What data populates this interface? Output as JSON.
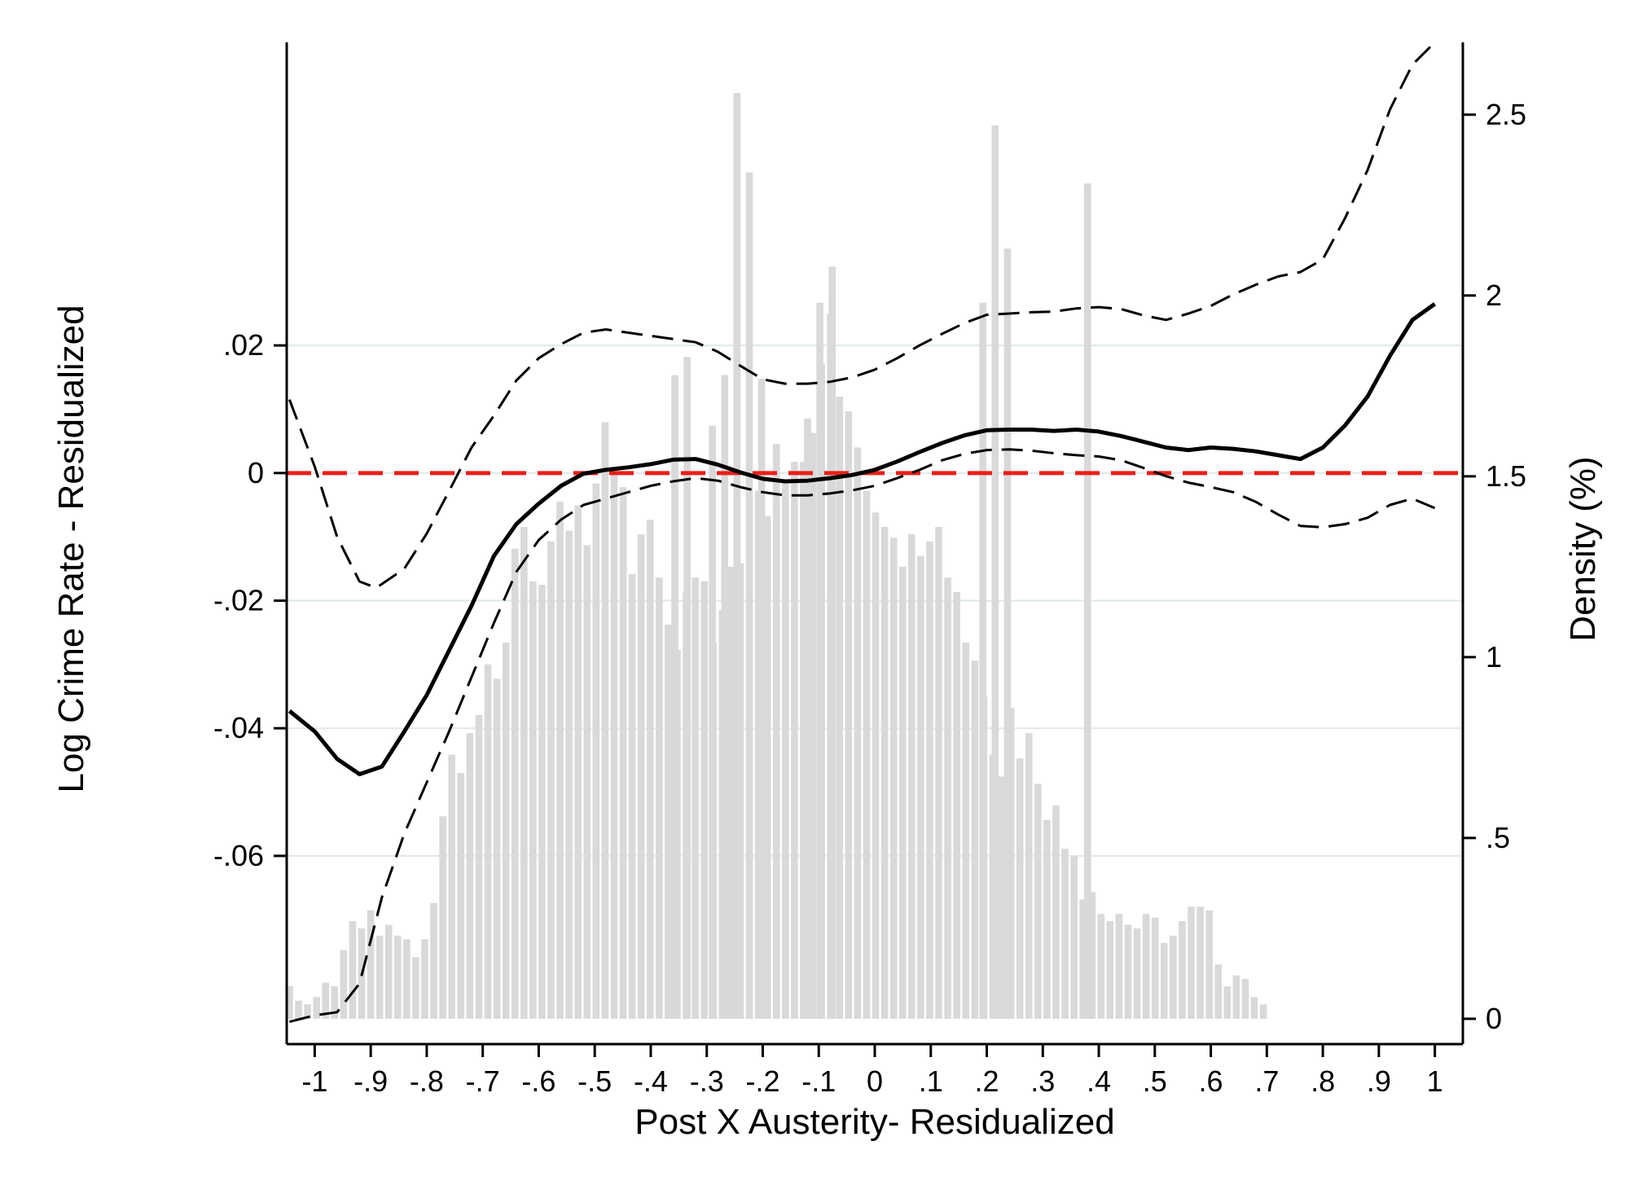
{
  "chart_data": {
    "type": "line",
    "title": "",
    "xlabel": "Post X Austerity- Residualized",
    "ylabel": "Log Crime Rate - Residualized",
    "y2label": "Density (%)",
    "xlim": [
      -1.05,
      1.05
    ],
    "ylim": [
      -0.0895,
      0.0675
    ],
    "y2lim": [
      -0.07,
      2.7
    ],
    "grid": true,
    "x_ticks": [
      {
        "value": -1,
        "label": "-1"
      },
      {
        "value": -0.9,
        "label": "-.9"
      },
      {
        "value": -0.8,
        "label": "-.8"
      },
      {
        "value": -0.7,
        "label": "-.7"
      },
      {
        "value": -0.6,
        "label": "-.6"
      },
      {
        "value": -0.5,
        "label": "-.5"
      },
      {
        "value": -0.4,
        "label": "-.4"
      },
      {
        "value": -0.3,
        "label": "-.3"
      },
      {
        "value": -0.2,
        "label": "-.2"
      },
      {
        "value": -0.1,
        "label": "-.1"
      },
      {
        "value": 0,
        "label": "0"
      },
      {
        "value": 0.1,
        "label": ".1"
      },
      {
        "value": 0.2,
        "label": ".2"
      },
      {
        "value": 0.3,
        "label": ".3"
      },
      {
        "value": 0.4,
        "label": ".4"
      },
      {
        "value": 0.5,
        "label": ".5"
      },
      {
        "value": 0.6,
        "label": ".6"
      },
      {
        "value": 0.7,
        "label": ".7"
      },
      {
        "value": 0.8,
        "label": ".8"
      },
      {
        "value": 0.9,
        "label": ".9"
      },
      {
        "value": 1,
        "label": "1"
      }
    ],
    "y_ticks": [
      {
        "value": 0.02,
        "label": ".02"
      },
      {
        "value": 0,
        "label": "0"
      },
      {
        "value": -0.02,
        "label": "-.02"
      },
      {
        "value": -0.04,
        "label": "-.04"
      },
      {
        "value": -0.06,
        "label": "-.06"
      }
    ],
    "y2_ticks": [
      {
        "value": 2.5,
        "label": "2.5"
      },
      {
        "value": 2,
        "label": "2"
      },
      {
        "value": 1.5,
        "label": "1.5"
      },
      {
        "value": 1,
        "label": "1"
      },
      {
        "value": 0.5,
        "label": ".5"
      },
      {
        "value": 0,
        "label": "0"
      }
    ],
    "reference_line": {
      "y": 0,
      "color": "#e8201a",
      "style": "dashed"
    },
    "colors": {
      "bars": "#d9d9d9",
      "estimate": "#000000",
      "ci": "#000000",
      "grid": "#dfe9e9",
      "reference": "#e8201a"
    },
    "density_bars": {
      "x_start": -1.045,
      "bin_width": 0.0161,
      "values": [
        0.09,
        0.05,
        0.04,
        0.06,
        0.1,
        0.09,
        0.19,
        0.27,
        0.25,
        0.3,
        0.23,
        0.26,
        0.23,
        0.22,
        0.17,
        0.22,
        0.32,
        0.56,
        0.73,
        0.68,
        0.79,
        0.84,
        0.98,
        0.94,
        1.04,
        1.3,
        1.36,
        1.21,
        1.2,
        1.32,
        1.43,
        1.35,
        1.42,
        1.31,
        1.48,
        1.65,
        1.52,
        1.47,
        1.23,
        1.34,
        1.38,
        1.22,
        1.09,
        1.02,
        1.18,
        1.22,
        1.21,
        1.04,
        1.13,
        1.25,
        1.26,
        1.35,
        1.46,
        1.39,
        1.59,
        1.49,
        1.54,
        1.54,
        1.62,
        1.81,
        1.95,
        1.72,
        1.68,
        1.58,
        1.46,
        1.4,
        1.36,
        1.33,
        1.25,
        1.34,
        1.28,
        1.32,
        1.36,
        1.22,
        1.18,
        1.04,
        0.99,
        0.89,
        0.73,
        0.67,
        0.86,
        0.72,
        0.79,
        0.65,
        0.55,
        0.59,
        0.47,
        0.45,
        0.33,
        0.35,
        0.29,
        0.27,
        0.29,
        0.26,
        0.25,
        0.29,
        0.28,
        0.21,
        0.23,
        0.27,
        0.31,
        0.31,
        0.3,
        0.15,
        0.09,
        0.12,
        0.11,
        0.06,
        0.04
      ],
      "spikes": [
        {
          "x": -0.357,
          "value": 1.78
        },
        {
          "x": -0.335,
          "value": 1.83
        },
        {
          "x": -0.29,
          "value": 1.64
        },
        {
          "x": -0.268,
          "value": 1.78
        },
        {
          "x": -0.246,
          "value": 2.56
        },
        {
          "x": -0.224,
          "value": 2.34
        },
        {
          "x": -0.202,
          "value": 1.77
        },
        {
          "x": -0.12,
          "value": 1.66
        },
        {
          "x": -0.098,
          "value": 1.98
        },
        {
          "x": -0.076,
          "value": 2.08
        },
        {
          "x": 0.193,
          "value": 1.98
        },
        {
          "x": 0.215,
          "value": 2.47
        },
        {
          "x": 0.237,
          "value": 2.13
        },
        {
          "x": 0.38,
          "value": 2.31
        }
      ]
    },
    "series": [
      {
        "role": "estimate",
        "style": "solid",
        "x": [
          -1.045,
          -1.0,
          -0.96,
          -0.92,
          -0.88,
          -0.84,
          -0.8,
          -0.76,
          -0.72,
          -0.68,
          -0.64,
          -0.6,
          -0.56,
          -0.52,
          -0.48,
          -0.44,
          -0.4,
          -0.36,
          -0.32,
          -0.28,
          -0.24,
          -0.2,
          -0.16,
          -0.12,
          -0.08,
          -0.04,
          0.0,
          0.04,
          0.08,
          0.12,
          0.16,
          0.2,
          0.24,
          0.28,
          0.32,
          0.36,
          0.4,
          0.44,
          0.48,
          0.52,
          0.56,
          0.6,
          0.64,
          0.68,
          0.72,
          0.76,
          0.8,
          0.84,
          0.88,
          0.92,
          0.96,
          1.0
        ],
        "y": [
          -0.0373,
          -0.0405,
          -0.0448,
          -0.0472,
          -0.046,
          -0.0405,
          -0.0348,
          -0.0278,
          -0.0208,
          -0.013,
          -0.008,
          -0.0048,
          -0.002,
          -0.0001,
          0.0005,
          0.0009,
          0.0014,
          0.0021,
          0.0022,
          0.0013,
          0.0001,
          -0.0009,
          -0.0013,
          -0.0012,
          -0.0008,
          -0.0003,
          0.0005,
          0.0018,
          0.0033,
          0.0047,
          0.0059,
          0.0067,
          0.0068,
          0.0068,
          0.0066,
          0.0068,
          0.0065,
          0.0058,
          0.0049,
          0.004,
          0.0036,
          0.004,
          0.0038,
          0.0034,
          0.0028,
          0.0022,
          0.004,
          0.0075,
          0.012,
          0.0184,
          0.024,
          0.0265
        ]
      },
      {
        "role": "upper-ci",
        "style": "dashed",
        "x": [
          -1.045,
          -1.0,
          -0.96,
          -0.92,
          -0.89,
          -0.84,
          -0.8,
          -0.76,
          -0.72,
          -0.68,
          -0.64,
          -0.6,
          -0.56,
          -0.52,
          -0.48,
          -0.44,
          -0.4,
          -0.36,
          -0.32,
          -0.28,
          -0.24,
          -0.2,
          -0.16,
          -0.12,
          -0.08,
          -0.04,
          0.0,
          0.04,
          0.08,
          0.12,
          0.16,
          0.2,
          0.24,
          0.28,
          0.32,
          0.36,
          0.4,
          0.44,
          0.48,
          0.52,
          0.56,
          0.6,
          0.64,
          0.68,
          0.72,
          0.76,
          0.8,
          0.84,
          0.88,
          0.92,
          0.96,
          1.0
        ],
        "y": [
          0.0115,
          0.001,
          -0.01,
          -0.017,
          -0.018,
          -0.015,
          -0.0095,
          -0.0028,
          0.004,
          0.009,
          0.0145,
          0.018,
          0.0202,
          0.022,
          0.0225,
          0.022,
          0.0215,
          0.021,
          0.0205,
          0.019,
          0.0168,
          0.0147,
          0.014,
          0.014,
          0.0143,
          0.015,
          0.0162,
          0.018,
          0.02,
          0.0218,
          0.0235,
          0.0248,
          0.025,
          0.0252,
          0.0253,
          0.0258,
          0.026,
          0.0257,
          0.0247,
          0.024,
          0.025,
          0.0262,
          0.028,
          0.0295,
          0.0308,
          0.0315,
          0.0335,
          0.04,
          0.0475,
          0.057,
          0.064,
          0.0675
        ]
      },
      {
        "role": "lower-ci",
        "style": "dashed",
        "x": [
          -1.045,
          -1.0,
          -0.96,
          -0.92,
          -0.88,
          -0.84,
          -0.8,
          -0.76,
          -0.72,
          -0.68,
          -0.64,
          -0.6,
          -0.56,
          -0.52,
          -0.48,
          -0.44,
          -0.4,
          -0.36,
          -0.32,
          -0.28,
          -0.24,
          -0.2,
          -0.16,
          -0.12,
          -0.08,
          -0.04,
          0.0,
          0.04,
          0.08,
          0.12,
          0.16,
          0.2,
          0.24,
          0.28,
          0.32,
          0.36,
          0.4,
          0.44,
          0.48,
          0.52,
          0.56,
          0.6,
          0.64,
          0.68,
          0.72,
          0.76,
          0.8,
          0.84,
          0.88,
          0.92,
          0.96,
          1.0
        ],
        "y": [
          -0.086,
          -0.085,
          -0.0845,
          -0.08,
          -0.0665,
          -0.0565,
          -0.0485,
          -0.0405,
          -0.032,
          -0.0235,
          -0.0155,
          -0.0105,
          -0.0073,
          -0.005,
          -0.004,
          -0.003,
          -0.002,
          -0.0013,
          -0.0008,
          -0.0012,
          -0.0022,
          -0.003,
          -0.0035,
          -0.0035,
          -0.0032,
          -0.0027,
          -0.002,
          -0.0008,
          0.0005,
          0.002,
          0.003,
          0.0036,
          0.0037,
          0.0035,
          0.0031,
          0.0028,
          0.0026,
          0.002,
          0.0008,
          -0.0005,
          -0.0015,
          -0.0022,
          -0.003,
          -0.0045,
          -0.0065,
          -0.0083,
          -0.0085,
          -0.008,
          -0.007,
          -0.005,
          -0.004,
          -0.0055
        ]
      }
    ]
  }
}
